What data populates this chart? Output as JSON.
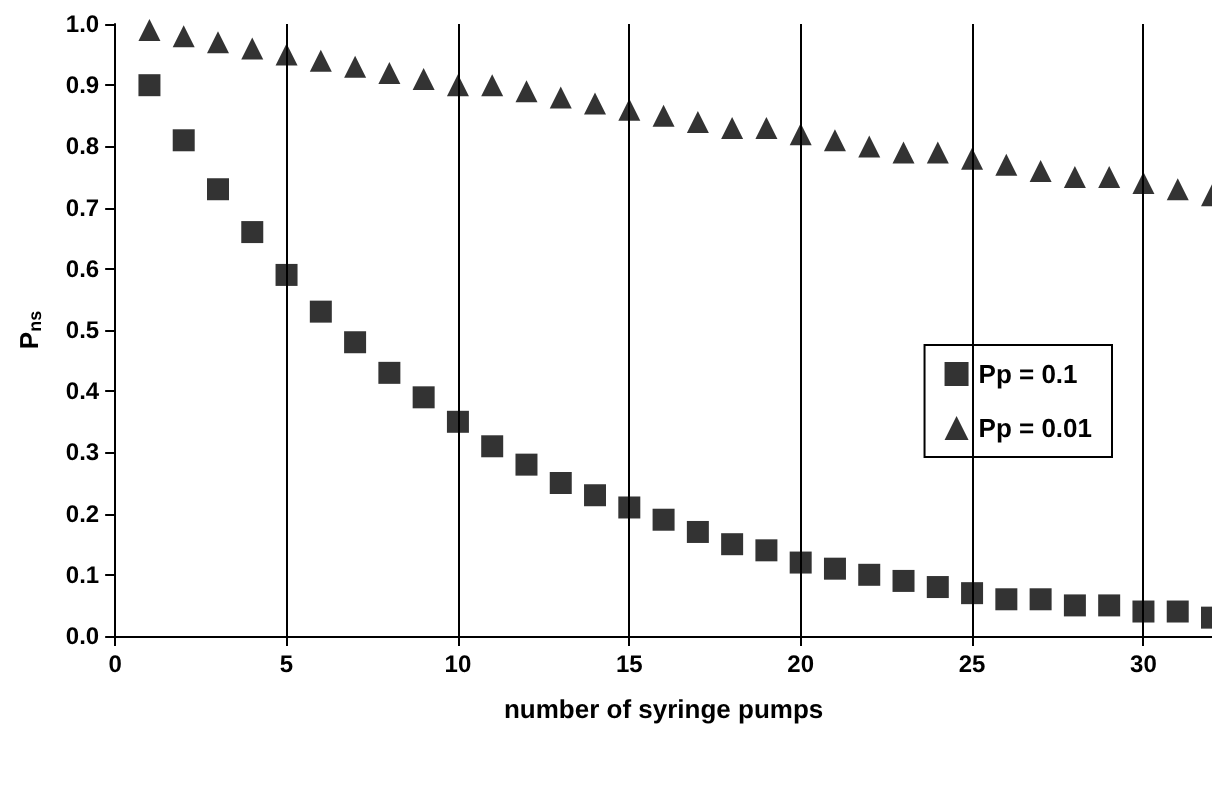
{
  "chart_data": {
    "type": "scatter",
    "xlabel": "number of syringe pumps",
    "ylabel": "P$_{ns}$",
    "x": [
      1,
      2,
      3,
      4,
      5,
      6,
      7,
      8,
      9,
      10,
      11,
      12,
      13,
      14,
      15,
      16,
      17,
      18,
      19,
      20,
      21,
      22,
      23,
      24,
      25,
      26,
      27,
      28,
      29,
      30,
      31,
      32
    ],
    "series": [
      {
        "name": "Pp = 0.1",
        "color": "#000000",
        "marker": "square",
        "values": [
          0.9,
          0.81,
          0.73,
          0.66,
          0.59,
          0.53,
          0.48,
          0.43,
          0.39,
          0.35,
          0.31,
          0.28,
          0.25,
          0.23,
          0.21,
          0.19,
          0.17,
          0.15,
          0.14,
          0.12,
          0.11,
          0.1,
          0.09,
          0.08,
          0.07,
          0.06,
          0.06,
          0.05,
          0.05,
          0.04,
          0.04,
          0.03
        ]
      },
      {
        "name": "Pp = 0.01",
        "color": "#000000",
        "marker": "triangle",
        "values": [
          0.99,
          0.98,
          0.97,
          0.96,
          0.95,
          0.94,
          0.93,
          0.92,
          0.91,
          0.9,
          0.9,
          0.89,
          0.88,
          0.87,
          0.86,
          0.85,
          0.84,
          0.83,
          0.83,
          0.82,
          0.81,
          0.8,
          0.79,
          0.79,
          0.78,
          0.77,
          0.76,
          0.75,
          0.75,
          0.74,
          0.73,
          0.72
        ]
      }
    ],
    "xlim": [
      0,
      32
    ],
    "xticks": [
      0,
      5,
      10,
      15,
      20,
      25,
      30
    ],
    "ylim": [
      0,
      1
    ],
    "yticks": [
      {
        "value": 0,
        "label": "0.0"
      },
      0.1,
      0.2,
      0.3,
      0.4,
      0.5,
      0.6,
      0.7,
      0.8,
      0.9,
      {
        "value": 1,
        "label": "1.0"
      }
    ],
    "grid": "x",
    "legend": "right"
  }
}
